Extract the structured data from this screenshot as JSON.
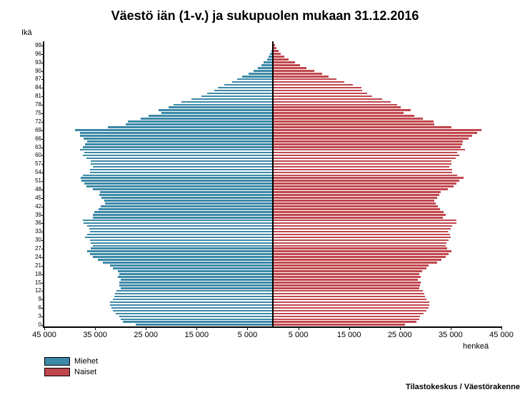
{
  "chart": {
    "type": "population-pyramid",
    "title": "Väestö iän (1-v.) ja sukupuolen mukaan 31.12.2016",
    "title_fontsize": 18,
    "y_axis_label": "Ikä",
    "x_axis_label": "henkeä",
    "background_color": "#ffffff",
    "axis_color": "#000000",
    "male_color": "#3d89a7",
    "female_color": "#c1474e",
    "bar_border_color": "#ffffff",
    "x_max": 45000,
    "x_ticks": [
      45000,
      35000,
      25000,
      15000,
      5000,
      5000,
      15000,
      25000,
      35000,
      45000
    ],
    "x_tick_labels": [
      "45 000",
      "35 000",
      "25 000",
      "15 000",
      "5 000",
      "5 000",
      "15 000",
      "25 000",
      "35 000",
      "45 000"
    ],
    "y_ticks": [
      0,
      3,
      6,
      9,
      12,
      15,
      18,
      21,
      24,
      27,
      30,
      33,
      36,
      39,
      42,
      45,
      48,
      51,
      54,
      57,
      60,
      63,
      66,
      69,
      72,
      75,
      78,
      81,
      84,
      87,
      90,
      93,
      96,
      99
    ],
    "ages": [
      0,
      1,
      2,
      3,
      4,
      5,
      6,
      7,
      8,
      9,
      10,
      11,
      12,
      13,
      14,
      15,
      16,
      17,
      18,
      19,
      20,
      21,
      22,
      23,
      24,
      25,
      26,
      27,
      28,
      29,
      30,
      31,
      32,
      33,
      34,
      35,
      36,
      37,
      38,
      39,
      40,
      41,
      42,
      43,
      44,
      45,
      46,
      47,
      48,
      49,
      50,
      51,
      52,
      53,
      54,
      55,
      56,
      57,
      58,
      59,
      60,
      61,
      62,
      63,
      64,
      65,
      66,
      67,
      68,
      69,
      70,
      71,
      72,
      73,
      74,
      75,
      76,
      77,
      78,
      79,
      80,
      81,
      82,
      83,
      84,
      85,
      86,
      87,
      88,
      89,
      90,
      91,
      92,
      93,
      94,
      95,
      96,
      97,
      98,
      99,
      100
    ],
    "males": [
      27000,
      29500,
      30000,
      30200,
      31000,
      31500,
      31800,
      32000,
      32000,
      31500,
      31200,
      31100,
      30800,
      30000,
      30200,
      30300,
      30000,
      30500,
      30200,
      30500,
      31500,
      32000,
      33500,
      34500,
      35500,
      36000,
      36500,
      35800,
      35400,
      35800,
      36000,
      37000,
      36500,
      36000,
      36200,
      36500,
      37300,
      37400,
      35400,
      35500,
      35200,
      34300,
      33900,
      33000,
      33200,
      33800,
      34200,
      34000,
      35500,
      36700,
      37100,
      37700,
      37900,
      37400,
      36000,
      36000,
      35500,
      35800,
      35800,
      36700,
      37400,
      37100,
      38000,
      37400,
      37000,
      36500,
      37200,
      38000,
      38000,
      38900,
      32500,
      29000,
      28500,
      26000,
      24500,
      22000,
      22500,
      20500,
      19500,
      18000,
      16000,
      14000,
      13000,
      11500,
      10800,
      9500,
      8000,
      7000,
      6000,
      4800,
      3800,
      3000,
      2200,
      1800,
      1100,
      800,
      500,
      300,
      200,
      100,
      50
    ],
    "females": [
      26000,
      28300,
      28800,
      29000,
      29700,
      30300,
      30600,
      30800,
      30800,
      30200,
      29900,
      29800,
      29500,
      28800,
      29000,
      29100,
      28500,
      29100,
      28800,
      29400,
      30300,
      30700,
      32300,
      33200,
      34100,
      34600,
      35100,
      34300,
      34000,
      34200,
      34600,
      35000,
      34900,
      34400,
      35000,
      35300,
      36100,
      36100,
      33500,
      34100,
      33600,
      32900,
      32500,
      32100,
      31800,
      32300,
      32700,
      33000,
      34500,
      35600,
      36100,
      36700,
      37600,
      36300,
      35300,
      35300,
      34800,
      35100,
      35100,
      36000,
      36700,
      36300,
      37800,
      37000,
      37200,
      37400,
      38500,
      39200,
      40200,
      41000,
      35100,
      31800,
      31600,
      29600,
      27900,
      25800,
      27200,
      25200,
      24500,
      23200,
      21500,
      19600,
      18500,
      17600,
      17500,
      15800,
      14000,
      12500,
      11000,
      9700,
      8100,
      6600,
      5400,
      4400,
      3100,
      2300,
      1600,
      1100,
      700,
      400,
      200
    ]
  },
  "legend": {
    "male_label": "Miehet",
    "female_label": "Naiset"
  },
  "source": "Tilastokeskus / Väestörakenne"
}
